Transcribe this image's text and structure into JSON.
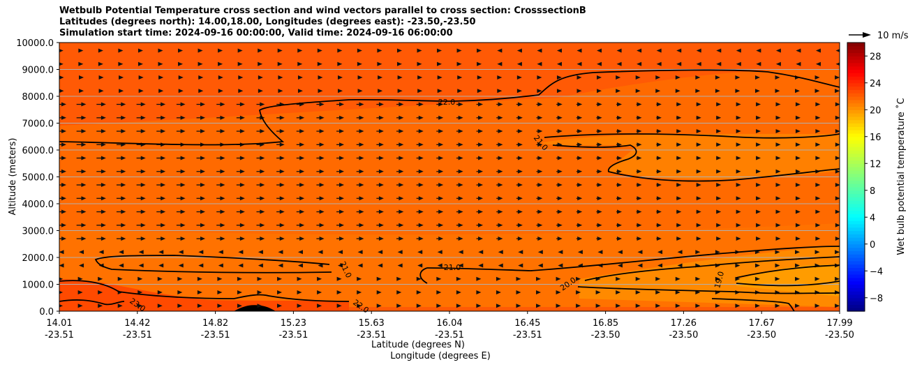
{
  "chart_data": {
    "type": "heatmap",
    "title_lines": [
      "Wetbulb Potential Temperature cross section and wind vectors parallel to cross section: CrosssectionB",
      "Latitudes (degrees north): 14.00,18.00, Longitudes (degrees east): -23.50,-23.50",
      "Simulation start time: 2024-09-16 00:00:00, Valid time: 2024-09-16 06:00:00"
    ],
    "xlabel_lat": "Latitude (degrees N)",
    "xlabel_lon": "Longitude (degrees E)",
    "ylabel": "Altitude (meters)",
    "ylim": [
      0,
      10000
    ],
    "yticks": [
      "0.0",
      "1000.0",
      "2000.0",
      "3000.0",
      "4000.0",
      "5000.0",
      "6000.0",
      "7000.0",
      "8000.0",
      "9000.0",
      "10000.0"
    ],
    "xticks_lat": [
      "14.01",
      "14.42",
      "14.82",
      "15.23",
      "15.63",
      "16.04",
      "16.45",
      "16.85",
      "17.26",
      "17.67",
      "17.99"
    ],
    "xticks_lon": [
      "-23.51",
      "-23.51",
      "-23.51",
      "-23.51",
      "-23.51",
      "-23.51",
      "-23.51",
      "-23.50",
      "-23.50",
      "-23.50",
      "-23.50"
    ],
    "colorbar_label": "Wet bulb potential temperature ˚C",
    "colorbar_ticks": [
      "−8",
      "−4",
      "0",
      "4",
      "8",
      "12",
      "16",
      "20",
      "24",
      "28"
    ],
    "colorbar_range": [
      -10,
      30
    ],
    "quiver_key_label": "10 m/s",
    "contour_labels": [
      "22.0",
      "21.0",
      "20.0",
      "19.0",
      "23.0",
      "22.0",
      "21.0"
    ],
    "grid": "horizontal",
    "field_range_estimate": [
      18.5,
      23.5
    ]
  }
}
